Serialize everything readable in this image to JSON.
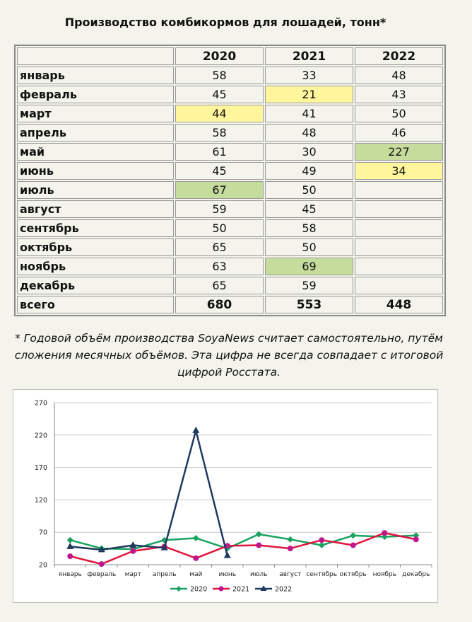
{
  "title": "Производство комбикормов для лошадей, тонн*",
  "table": {
    "headers": [
      "",
      "2020",
      "2021",
      "2022"
    ],
    "rows": [
      {
        "month": "январь",
        "v": [
          "58",
          "33",
          "48"
        ],
        "hl": [
          "",
          "",
          ""
        ]
      },
      {
        "month": "февраль",
        "v": [
          "45",
          "21",
          "43"
        ],
        "hl": [
          "",
          "y",
          ""
        ]
      },
      {
        "month": "март",
        "v": [
          "44",
          "41",
          "50"
        ],
        "hl": [
          "y",
          "",
          ""
        ]
      },
      {
        "month": "апрель",
        "v": [
          "58",
          "48",
          "46"
        ],
        "hl": [
          "",
          "",
          ""
        ]
      },
      {
        "month": "май",
        "v": [
          "61",
          "30",
          "227"
        ],
        "hl": [
          "",
          "",
          "g"
        ]
      },
      {
        "month": "июнь",
        "v": [
          "45",
          "49",
          "34"
        ],
        "hl": [
          "",
          "",
          "y"
        ]
      },
      {
        "month": "июль",
        "v": [
          "67",
          "50",
          ""
        ],
        "hl": [
          "g",
          "",
          ""
        ]
      },
      {
        "month": "август",
        "v": [
          "59",
          "45",
          ""
        ],
        "hl": [
          "",
          "",
          ""
        ]
      },
      {
        "month": "сентябрь",
        "v": [
          "50",
          "58",
          ""
        ],
        "hl": [
          "",
          "",
          ""
        ]
      },
      {
        "month": "октябрь",
        "v": [
          "65",
          "50",
          ""
        ],
        "hl": [
          "",
          "",
          ""
        ]
      },
      {
        "month": "ноябрь",
        "v": [
          "63",
          "69",
          ""
        ],
        "hl": [
          "",
          "g",
          ""
        ]
      },
      {
        "month": "декабрь",
        "v": [
          "65",
          "59",
          ""
        ],
        "hl": [
          "",
          "",
          ""
        ]
      }
    ],
    "total": {
      "month": "всего",
      "v": [
        "680",
        "553",
        "448"
      ]
    },
    "highlight_colors": {
      "y": "#fff59d",
      "g": "#c5dc9d"
    }
  },
  "note": "* Годовой объём производства SoyaNews считает самостоятельно, путём сложения месячных объёмов. Эта цифра не всегда совпадает с итоговой цифрой Росстата.",
  "chart_data": {
    "type": "line",
    "categories": [
      "январь",
      "февраль",
      "март",
      "апрель",
      "май",
      "июнь",
      "июль",
      "август",
      "сентябрь",
      "октябрь",
      "ноябрь",
      "декабрь"
    ],
    "series": [
      {
        "name": "2020",
        "color": "#1aa260",
        "marker": "diamond",
        "values": [
          58,
          45,
          44,
          58,
          61,
          45,
          67,
          59,
          50,
          65,
          63,
          65
        ]
      },
      {
        "name": "2021",
        "color": "#e0143c",
        "marker": "circle",
        "marker_color": "#c0158c",
        "values": [
          33,
          21,
          41,
          48,
          30,
          49,
          50,
          45,
          58,
          50,
          69,
          59
        ]
      },
      {
        "name": "2022",
        "color": "#1f3a5f",
        "marker": "triangle",
        "values": [
          48,
          43,
          50,
          46,
          227,
          34,
          null,
          null,
          null,
          null,
          null,
          null
        ]
      }
    ],
    "yticks": [
      20,
      70,
      120,
      170,
      220,
      270
    ],
    "ylim": [
      20,
      270
    ],
    "grid": true,
    "legend": "bottom"
  }
}
